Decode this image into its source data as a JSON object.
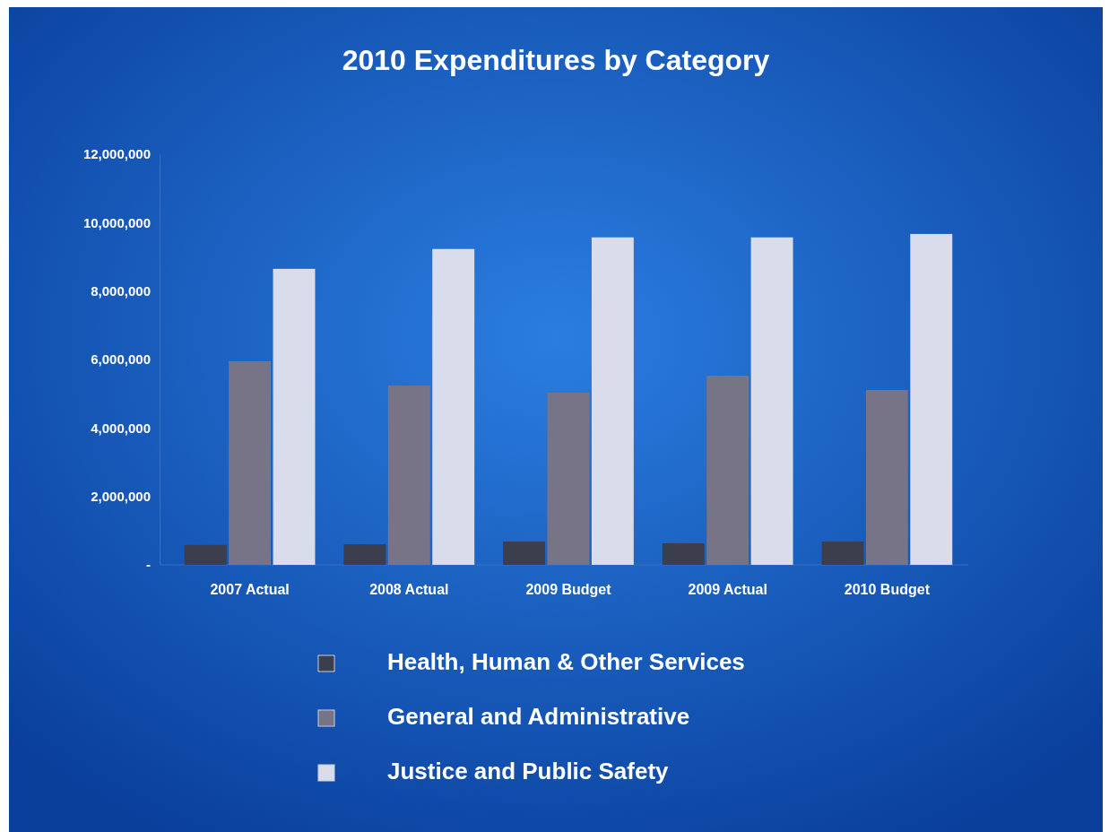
{
  "chart_data": {
    "type": "bar",
    "title": "2010 Expenditures by Category",
    "categories": [
      "2007 Actual",
      "2008 Actual",
      "2009 Budget",
      "2009 Actual",
      "2010 Budget"
    ],
    "series": [
      {
        "name": "Health, Human & Other Services",
        "color": "#3b3f4c",
        "values": [
          580000,
          600000,
          680000,
          630000,
          680000
        ]
      },
      {
        "name": "General and Administrative",
        "color": "#777488",
        "values": [
          5950000,
          5240000,
          5030000,
          5530000,
          5110000
        ]
      },
      {
        "name": "Justice and Public Safety",
        "color": "#d9dcea",
        "values": [
          8650000,
          9230000,
          9570000,
          9570000,
          9670000
        ]
      }
    ],
    "ylim": [
      0,
      12000000
    ],
    "yticks": [
      {
        "value": 0,
        "label": "-"
      },
      {
        "value": 2000000,
        "label": "2,000,000"
      },
      {
        "value": 4000000,
        "label": "4,000,000"
      },
      {
        "value": 6000000,
        "label": "6,000,000"
      },
      {
        "value": 8000000,
        "label": "8,000,000"
      },
      {
        "value": 10000000,
        "label": "10,000,000"
      },
      {
        "value": 12000000,
        "label": "12,000,000"
      }
    ],
    "grid": false,
    "legend": "bottom"
  }
}
